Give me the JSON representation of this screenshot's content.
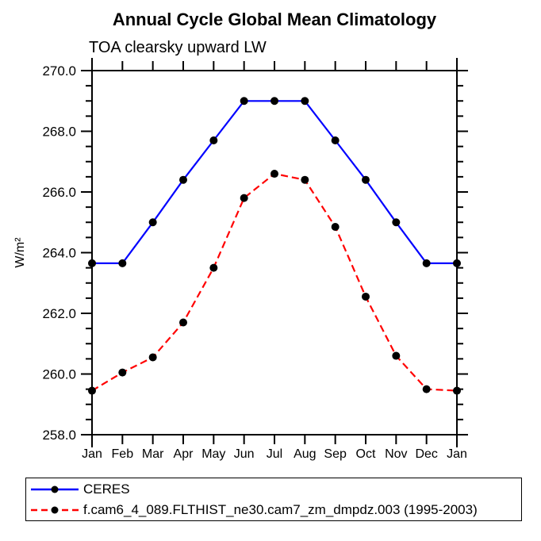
{
  "chart_data": {
    "type": "line",
    "title": "Annual Cycle Global Mean Climatology",
    "subtitle": "TOA clearsky upward LW",
    "ylabel": "W/m²",
    "xlabel": "",
    "categories": [
      "Jan",
      "Feb",
      "Mar",
      "Apr",
      "May",
      "Jun",
      "Jul",
      "Aug",
      "Sep",
      "Oct",
      "Nov",
      "Dec",
      "Jan"
    ],
    "ylim": [
      258.0,
      270.0
    ],
    "ytick_major_step": 2.0,
    "ytick_minor_step": 0.5,
    "ytick_decimals": 1,
    "grid": false,
    "legend_position": "bottom-left-box",
    "axis_color": "#000000",
    "marker_color": "#000000",
    "series": [
      {
        "name": "CERES",
        "color": "#0000ff",
        "style": "solid",
        "marker": "filled-circle",
        "values": [
          263.65,
          263.65,
          265.0,
          266.4,
          267.7,
          269.0,
          269.0,
          269.0,
          267.7,
          266.4,
          265.0,
          263.65,
          263.65
        ]
      },
      {
        "name": "f.cam6_4_089.FLTHIST_ne30.cam7_zm_dmpdz.003 (1995-2003)",
        "color": "#ff0000",
        "style": "dashed",
        "marker": "filled-circle",
        "values": [
          259.45,
          260.05,
          260.55,
          261.7,
          263.5,
          265.8,
          266.6,
          266.4,
          264.85,
          262.55,
          260.6,
          259.5,
          259.45
        ]
      }
    ]
  }
}
